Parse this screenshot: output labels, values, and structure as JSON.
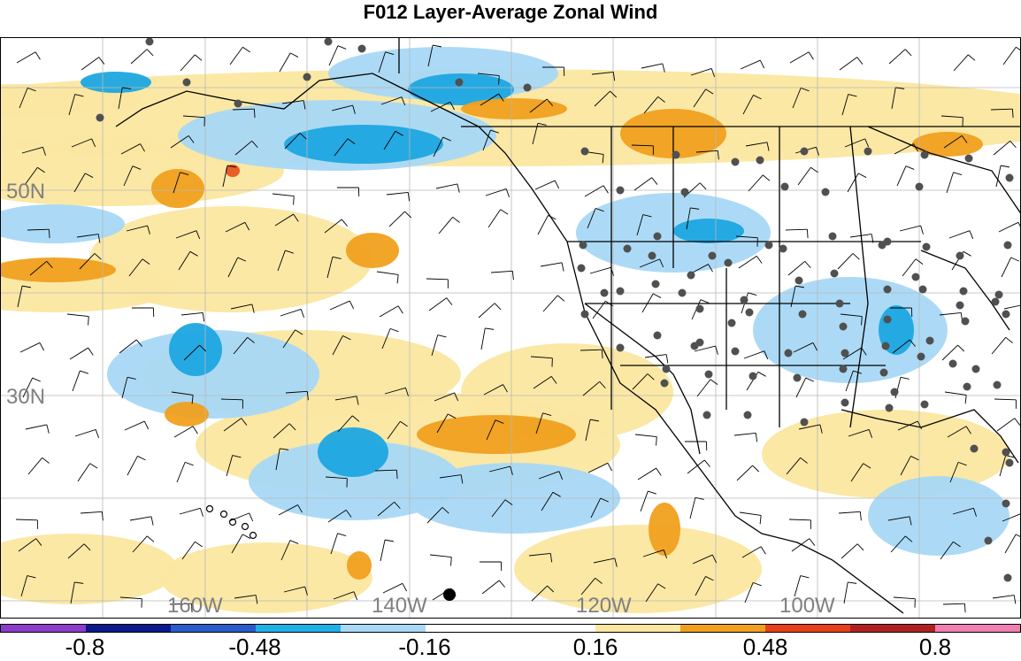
{
  "title": "F012 Layer-Average Zonal Wind",
  "map": {
    "lat_labels": [
      "50N",
      "30N"
    ],
    "lon_labels": [
      "160W",
      "140W",
      "120W",
      "100W"
    ],
    "colors": {
      "strong_neg": "#1ea6e0",
      "weak_neg": "#a8d8f5",
      "weak_pos": "#fbe7a0",
      "strong_pos": "#f0a01e",
      "max_pos": "#e8561f",
      "grid": "#b8b8b8",
      "coast": "#000000",
      "station": "#505050"
    }
  },
  "colorbar": {
    "colors": [
      "#8b3cc9",
      "#0a1a8c",
      "#2a5cc8",
      "#20b0e8",
      "#a8d8f5",
      "#ffffff",
      "#ffffff",
      "#fbe7a0",
      "#f0a01e",
      "#e8401a",
      "#b02020",
      "#ee7fb0"
    ],
    "labels": [
      "-0.8",
      "-0.48",
      "-0.16",
      "0.16",
      "0.48",
      "0.8"
    ]
  }
}
